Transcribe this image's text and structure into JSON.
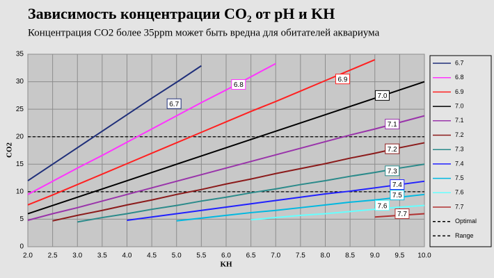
{
  "chart_data": {
    "type": "line",
    "title": "Зависимость концентрации CO₂ от pH и KH",
    "subtitle": "Концентрация CO2 более 35ppm может быть вредна для обитателей аквариума",
    "x_label": "KH",
    "y_label": "CO2",
    "x": [
      2,
      2.5,
      3,
      3.5,
      4,
      4.5,
      5,
      5.5,
      6,
      6.5,
      7,
      7.5,
      8,
      8.5,
      9,
      9.5,
      10
    ],
    "series": [
      {
        "name": "6.7",
        "color": "#1f2f7a",
        "values": [
          12.0,
          15.0,
          18.0,
          21.0,
          24.0,
          27.0,
          29.9,
          32.9,
          null,
          null,
          null,
          null,
          null,
          null,
          null,
          null,
          null
        ]
      },
      {
        "name": "6.8",
        "color": "#ff33ff",
        "values": [
          9.5,
          11.9,
          14.3,
          16.6,
          19.0,
          21.4,
          23.8,
          26.2,
          28.5,
          30.9,
          33.3,
          null,
          null,
          null,
          null,
          null,
          null
        ]
      },
      {
        "name": "6.9",
        "color": "#ff2020",
        "values": [
          7.6,
          9.4,
          11.3,
          13.2,
          15.1,
          17.0,
          18.9,
          20.8,
          22.7,
          24.6,
          26.4,
          28.3,
          30.2,
          32.1,
          34.0,
          null,
          null
        ]
      },
      {
        "name": "7.0",
        "color": "#000000",
        "values": [
          6.0,
          7.5,
          9.0,
          10.5,
          12.0,
          13.5,
          15.0,
          16.5,
          18.0,
          19.5,
          21.0,
          22.5,
          24.0,
          25.5,
          27.0,
          28.5,
          30.0
        ]
      },
      {
        "name": "7.1",
        "color": "#9933aa",
        "values": [
          4.8,
          6.0,
          7.1,
          8.3,
          9.5,
          10.7,
          11.9,
          13.1,
          14.3,
          15.5,
          16.7,
          17.9,
          19.1,
          20.3,
          21.4,
          22.6,
          23.8
        ]
      },
      {
        "name": "7.2",
        "color": "#8b1a1a",
        "values": [
          null,
          4.7,
          5.7,
          6.6,
          7.6,
          8.5,
          9.5,
          10.4,
          11.4,
          12.3,
          13.3,
          14.2,
          15.1,
          16.1,
          17.0,
          18.0,
          18.9
        ]
      },
      {
        "name": "7.3",
        "color": "#2a8a8a",
        "values": [
          null,
          null,
          4.5,
          5.3,
          6.0,
          6.8,
          7.5,
          8.3,
          9.0,
          9.8,
          10.5,
          11.3,
          12.0,
          12.8,
          13.5,
          14.3,
          15.0
        ]
      },
      {
        "name": "7.4",
        "color": "#2020ff",
        "values": [
          null,
          null,
          null,
          null,
          4.8,
          5.4,
          6.0,
          6.6,
          7.2,
          7.8,
          8.4,
          9.0,
          9.6,
          10.1,
          10.7,
          11.3,
          11.9
        ]
      },
      {
        "name": "7.5",
        "color": "#00b8e0",
        "values": [
          null,
          null,
          null,
          null,
          null,
          null,
          4.7,
          5.2,
          5.7,
          6.2,
          6.6,
          7.1,
          7.6,
          8.1,
          8.5,
          9.0,
          9.5
        ]
      },
      {
        "name": "7.6",
        "color": "#66ffff",
        "values": [
          null,
          null,
          null,
          null,
          null,
          null,
          null,
          null,
          null,
          4.9,
          5.3,
          5.7,
          6.0,
          6.4,
          6.8,
          7.2,
          7.5
        ]
      },
      {
        "name": "7.7",
        "color": "#b03030",
        "values": [
          null,
          null,
          null,
          null,
          null,
          null,
          null,
          null,
          null,
          null,
          null,
          null,
          null,
          null,
          5.4,
          5.7,
          6.0
        ]
      }
    ],
    "reference_lines": [
      {
        "name": "Optimal",
        "value": 20,
        "color": "#000000"
      },
      {
        "name": "Range",
        "value": 10,
        "color": "#000000"
      }
    ],
    "xlim": [
      2,
      10
    ],
    "xticks": [
      {
        "value": 2,
        "label": "2.0"
      },
      {
        "value": 2.5,
        "label": "2.5"
      },
      {
        "value": 3,
        "label": "3.0"
      },
      {
        "value": 3.5,
        "label": "3.5"
      },
      {
        "value": 4,
        "label": "4.0"
      },
      {
        "value": 4.5,
        "label": "4.5"
      },
      {
        "value": 5,
        "label": "5.0"
      },
      {
        "value": 5.5,
        "label": "5.5"
      },
      {
        "value": 6,
        "label": "6.0"
      },
      {
        "value": 6.5,
        "label": "6.5"
      },
      {
        "value": 7,
        "label": "7.0"
      },
      {
        "value": 7.5,
        "label": "7.5"
      },
      {
        "value": 8,
        "label": "8.0"
      },
      {
        "value": 8.5,
        "label": "8.5"
      },
      {
        "value": 9,
        "label": "9.0"
      },
      {
        "value": 9.5,
        "label": "9.5"
      },
      {
        "value": 10,
        "label": "10.0"
      }
    ],
    "ylim": [
      0,
      35
    ],
    "yticks": [
      0,
      5,
      10,
      15,
      20,
      25,
      30,
      35
    ],
    "grid": true
  }
}
